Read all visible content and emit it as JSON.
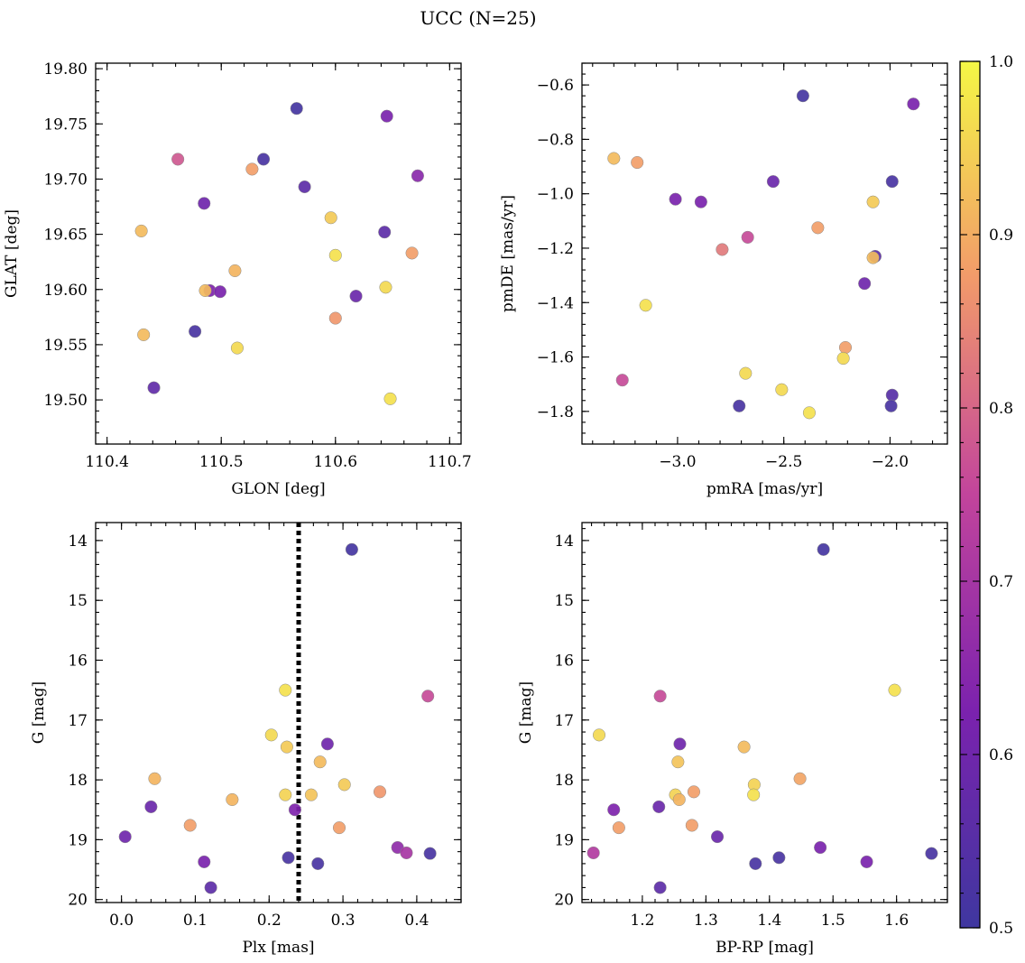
{
  "title": "UCC (N=25)",
  "colorbar": {
    "min": 0.5,
    "max": 1.0,
    "ticks": [
      0.5,
      0.6,
      0.7,
      0.8,
      0.9,
      1.0
    ],
    "tick_labels": [
      "0.5",
      "0.6",
      "0.7",
      "0.8",
      "0.9",
      "1.0"
    ],
    "colormap": "plasma"
  },
  "chart_data": [
    {
      "type": "scatter",
      "xlabel": "GLON [deg]",
      "ylabel": "GLAT [deg]",
      "xlim": [
        110.39,
        110.71
      ],
      "ylim": [
        19.46,
        19.805
      ],
      "xticks": [
        110.4,
        110.5,
        110.6,
        110.7
      ],
      "xtick_labels": [
        "110.4",
        "110.5",
        "110.6",
        "110.7"
      ],
      "yticks": [
        19.5,
        19.55,
        19.6,
        19.65,
        19.7,
        19.75,
        19.8
      ],
      "ytick_labels": [
        "19.50",
        "19.55",
        "19.60",
        "19.65",
        "19.70",
        "19.75",
        "19.80"
      ],
      "y_inverted": false,
      "points": [
        {
          "x": 110.566,
          "y": 19.764,
          "c": 0.51
        },
        {
          "x": 110.645,
          "y": 19.757,
          "c": 0.62
        },
        {
          "x": 110.462,
          "y": 19.718,
          "c": 0.78
        },
        {
          "x": 110.537,
          "y": 19.718,
          "c": 0.52
        },
        {
          "x": 110.527,
          "y": 19.709,
          "c": 0.88
        },
        {
          "x": 110.672,
          "y": 19.703,
          "c": 0.65
        },
        {
          "x": 110.573,
          "y": 19.693,
          "c": 0.56
        },
        {
          "x": 110.485,
          "y": 19.678,
          "c": 0.6
        },
        {
          "x": 110.596,
          "y": 19.665,
          "c": 0.94
        },
        {
          "x": 110.43,
          "y": 19.653,
          "c": 0.92
        },
        {
          "x": 110.643,
          "y": 19.652,
          "c": 0.56
        },
        {
          "x": 110.667,
          "y": 19.633,
          "c": 0.88
        },
        {
          "x": 110.6,
          "y": 19.631,
          "c": 0.97
        },
        {
          "x": 110.512,
          "y": 19.617,
          "c": 0.91
        },
        {
          "x": 110.49,
          "y": 19.599,
          "c": 0.63
        },
        {
          "x": 110.486,
          "y": 19.599,
          "c": 0.92
        },
        {
          "x": 110.499,
          "y": 19.598,
          "c": 0.62
        },
        {
          "x": 110.618,
          "y": 19.594,
          "c": 0.59
        },
        {
          "x": 110.644,
          "y": 19.602,
          "c": 0.96
        },
        {
          "x": 110.6,
          "y": 19.574,
          "c": 0.87
        },
        {
          "x": 110.477,
          "y": 19.562,
          "c": 0.52
        },
        {
          "x": 110.432,
          "y": 19.559,
          "c": 0.92
        },
        {
          "x": 110.514,
          "y": 19.547,
          "c": 0.96
        },
        {
          "x": 110.441,
          "y": 19.511,
          "c": 0.57
        },
        {
          "x": 110.648,
          "y": 19.501,
          "c": 0.97
        }
      ]
    },
    {
      "type": "scatter",
      "xlabel": "pmRA [mas/yr]",
      "ylabel": "pmDE [mas/yr]",
      "xlim": [
        -3.45,
        -1.73
      ],
      "ylim": [
        -1.92,
        -0.52
      ],
      "xticks": [
        -3.0,
        -2.5,
        -2.0
      ],
      "xtick_labels": [
        "−3.0",
        "−2.5",
        "−2.0"
      ],
      "yticks": [
        -1.8,
        -1.6,
        -1.4,
        -1.2,
        -1.0,
        -0.8,
        -0.6
      ],
      "ytick_labels": [
        "−1.8",
        "−1.6",
        "−1.4",
        "−1.2",
        "−1.0",
        "−0.8",
        "−0.6"
      ],
      "y_inverted": false,
      "points": [
        {
          "x": -2.41,
          "y": -0.64,
          "c": 0.51
        },
        {
          "x": -1.89,
          "y": -0.67,
          "c": 0.62
        },
        {
          "x": -3.3,
          "y": -0.87,
          "c": 0.92
        },
        {
          "x": -3.19,
          "y": -0.885,
          "c": 0.88
        },
        {
          "x": -2.55,
          "y": -0.955,
          "c": 0.59
        },
        {
          "x": -1.99,
          "y": -0.955,
          "c": 0.52
        },
        {
          "x": -3.01,
          "y": -1.02,
          "c": 0.62
        },
        {
          "x": -2.89,
          "y": -1.03,
          "c": 0.62
        },
        {
          "x": -2.08,
          "y": -1.03,
          "c": 0.94
        },
        {
          "x": -2.34,
          "y": -1.125,
          "c": 0.88
        },
        {
          "x": -2.67,
          "y": -1.16,
          "c": 0.76
        },
        {
          "x": -2.79,
          "y": -1.205,
          "c": 0.83
        },
        {
          "x": -2.07,
          "y": -1.23,
          "c": 0.56
        },
        {
          "x": -2.08,
          "y": -1.235,
          "c": 0.92
        },
        {
          "x": -2.12,
          "y": -1.33,
          "c": 0.6
        },
        {
          "x": -3.15,
          "y": -1.41,
          "c": 0.97
        },
        {
          "x": -2.21,
          "y": -1.565,
          "c": 0.88
        },
        {
          "x": -2.22,
          "y": -1.605,
          "c": 0.96
        },
        {
          "x": -2.68,
          "y": -1.66,
          "c": 0.96
        },
        {
          "x": -3.26,
          "y": -1.685,
          "c": 0.76
        },
        {
          "x": -2.51,
          "y": -1.72,
          "c": 0.96
        },
        {
          "x": -1.99,
          "y": -1.74,
          "c": 0.55
        },
        {
          "x": -2.71,
          "y": -1.78,
          "c": 0.52
        },
        {
          "x": -1.995,
          "y": -1.78,
          "c": 0.52
        },
        {
          "x": -2.38,
          "y": -1.805,
          "c": 0.97
        }
      ]
    },
    {
      "type": "scatter",
      "xlabel": "Plx [mas]",
      "ylabel": "G [mag]",
      "xlim": [
        -0.035,
        0.46
      ],
      "ylim": [
        13.7,
        20.05
      ],
      "xticks": [
        0.0,
        0.1,
        0.2,
        0.3,
        0.4
      ],
      "xtick_labels": [
        "0.0",
        "0.1",
        "0.2",
        "0.3",
        "0.4"
      ],
      "yticks": [
        14,
        15,
        16,
        17,
        18,
        19,
        20
      ],
      "ytick_labels": [
        "14",
        "15",
        "16",
        "17",
        "18",
        "19",
        "20"
      ],
      "y_inverted": true,
      "vline": {
        "x": 0.24,
        "style": "dotted",
        "color": "#000000"
      },
      "points": [
        {
          "x": 0.312,
          "y": 14.15,
          "c": 0.51
        },
        {
          "x": 0.222,
          "y": 16.5,
          "c": 0.97
        },
        {
          "x": 0.415,
          "y": 16.6,
          "c": 0.76
        },
        {
          "x": 0.203,
          "y": 17.25,
          "c": 0.96
        },
        {
          "x": 0.279,
          "y": 17.4,
          "c": 0.6
        },
        {
          "x": 0.224,
          "y": 17.45,
          "c": 0.94
        },
        {
          "x": 0.269,
          "y": 17.7,
          "c": 0.92
        },
        {
          "x": 0.045,
          "y": 17.98,
          "c": 0.91
        },
        {
          "x": 0.302,
          "y": 18.08,
          "c": 0.94
        },
        {
          "x": 0.35,
          "y": 18.2,
          "c": 0.87
        },
        {
          "x": 0.257,
          "y": 18.25,
          "c": 0.93
        },
        {
          "x": 0.222,
          "y": 18.25,
          "c": 0.95
        },
        {
          "x": 0.15,
          "y": 18.33,
          "c": 0.91
        },
        {
          "x": 0.04,
          "y": 18.45,
          "c": 0.59
        },
        {
          "x": 0.235,
          "y": 18.5,
          "c": 0.63
        },
        {
          "x": 0.093,
          "y": 18.76,
          "c": 0.88
        },
        {
          "x": 0.295,
          "y": 18.8,
          "c": 0.88
        },
        {
          "x": 0.005,
          "y": 18.95,
          "c": 0.6
        },
        {
          "x": 0.374,
          "y": 19.13,
          "c": 0.66
        },
        {
          "x": 0.386,
          "y": 19.22,
          "c": 0.7
        },
        {
          "x": 0.418,
          "y": 19.23,
          "c": 0.52
        },
        {
          "x": 0.226,
          "y": 19.3,
          "c": 0.52
        },
        {
          "x": 0.112,
          "y": 19.37,
          "c": 0.62
        },
        {
          "x": 0.266,
          "y": 19.4,
          "c": 0.52
        },
        {
          "x": 0.121,
          "y": 19.8,
          "c": 0.56
        }
      ]
    },
    {
      "type": "scatter",
      "xlabel": "BP-RP [mag]",
      "ylabel": "G [mag]",
      "xlim": [
        1.105,
        1.68
      ],
      "ylim": [
        13.7,
        20.05
      ],
      "xticks": [
        1.2,
        1.3,
        1.4,
        1.5,
        1.6
      ],
      "xtick_labels": [
        "1.2",
        "1.3",
        "1.4",
        "1.5",
        "1.6"
      ],
      "yticks": [
        14,
        15,
        16,
        17,
        18,
        19,
        20
      ],
      "ytick_labels": [
        "14",
        "15",
        "16",
        "17",
        "18",
        "19",
        "20"
      ],
      "y_inverted": true,
      "points": [
        {
          "x": 1.485,
          "y": 14.15,
          "c": 0.51
        },
        {
          "x": 1.597,
          "y": 16.5,
          "c": 0.97
        },
        {
          "x": 1.228,
          "y": 16.6,
          "c": 0.76
        },
        {
          "x": 1.132,
          "y": 17.25,
          "c": 0.96
        },
        {
          "x": 1.259,
          "y": 17.4,
          "c": 0.6
        },
        {
          "x": 1.36,
          "y": 17.45,
          "c": 0.92
        },
        {
          "x": 1.256,
          "y": 17.7,
          "c": 0.93
        },
        {
          "x": 1.448,
          "y": 17.98,
          "c": 0.89
        },
        {
          "x": 1.376,
          "y": 18.08,
          "c": 0.95
        },
        {
          "x": 1.281,
          "y": 18.2,
          "c": 0.88
        },
        {
          "x": 1.375,
          "y": 18.25,
          "c": 0.97
        },
        {
          "x": 1.252,
          "y": 18.25,
          "c": 0.95
        },
        {
          "x": 1.258,
          "y": 18.33,
          "c": 0.91
        },
        {
          "x": 1.226,
          "y": 18.45,
          "c": 0.59
        },
        {
          "x": 1.155,
          "y": 18.5,
          "c": 0.63
        },
        {
          "x": 1.278,
          "y": 18.76,
          "c": 0.88
        },
        {
          "x": 1.163,
          "y": 18.8,
          "c": 0.88
        },
        {
          "x": 1.318,
          "y": 18.95,
          "c": 0.59
        },
        {
          "x": 1.48,
          "y": 19.13,
          "c": 0.62
        },
        {
          "x": 1.123,
          "y": 19.22,
          "c": 0.72
        },
        {
          "x": 1.655,
          "y": 19.23,
          "c": 0.52
        },
        {
          "x": 1.415,
          "y": 19.3,
          "c": 0.52
        },
        {
          "x": 1.553,
          "y": 19.37,
          "c": 0.62
        },
        {
          "x": 1.378,
          "y": 19.4,
          "c": 0.52
        },
        {
          "x": 1.228,
          "y": 19.8,
          "c": 0.56
        }
      ]
    }
  ]
}
